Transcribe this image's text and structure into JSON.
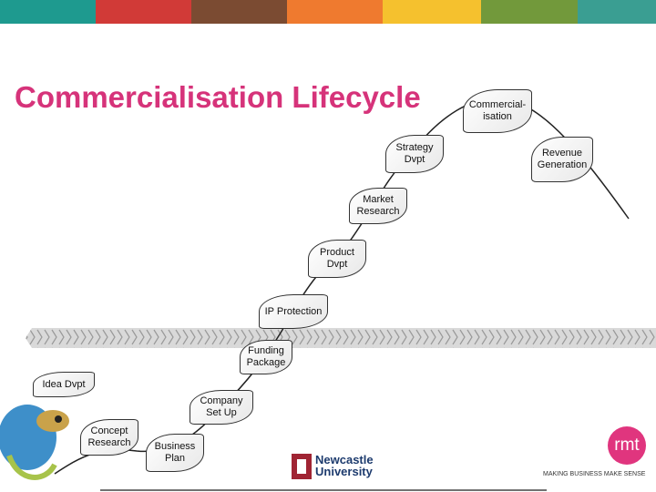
{
  "title": "Commercialisation Lifecycle",
  "nodes": [
    {
      "label": [
        "Concept",
        "Research"
      ]
    },
    {
      "label": [
        "Business",
        "Plan"
      ]
    },
    {
      "label": [
        "Idea Dvpt"
      ]
    },
    {
      "label": [
        "Company",
        "Set Up"
      ]
    },
    {
      "label": [
        "Funding",
        "Package"
      ]
    },
    {
      "label": [
        "IP Protection"
      ]
    },
    {
      "label": [
        "Product",
        "Dvpt"
      ]
    },
    {
      "label": [
        "Market",
        "Research"
      ]
    },
    {
      "label": [
        "Strategy",
        "Dvpt"
      ]
    },
    {
      "label": [
        "Commercial-",
        "isation"
      ]
    },
    {
      "label": [
        "Revenue",
        "Generation"
      ]
    }
  ],
  "logos": {
    "university": [
      "Newcastle",
      "University"
    ],
    "rmt": "rmt",
    "rmt_tagline": "MAKING BUSINESS MAKE SENSE"
  }
}
